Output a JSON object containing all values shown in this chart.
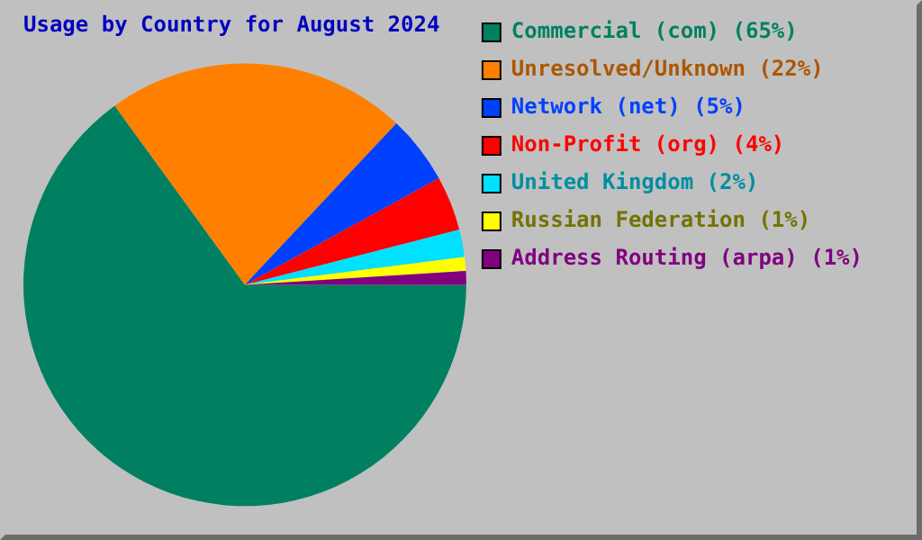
{
  "chart_data": {
    "type": "pie",
    "title": "Usage by Country for August 2024",
    "categories": [
      "Commercial (com) (65%)",
      "Unresolved/Unknown (22%)",
      "Network (net) (5%)",
      "Non-Profit (org) (4%)",
      "United Kingdom (2%)",
      "Russian Federation (1%)",
      "Address Routing (arpa) (1%)"
    ],
    "values": [
      65,
      22,
      5,
      4,
      2,
      1,
      1
    ],
    "colors": [
      "#008060",
      "#ff8000",
      "#0040ff",
      "#ff0000",
      "#00e0ff",
      "#ffff00",
      "#800080"
    ],
    "legend": "right"
  }
}
